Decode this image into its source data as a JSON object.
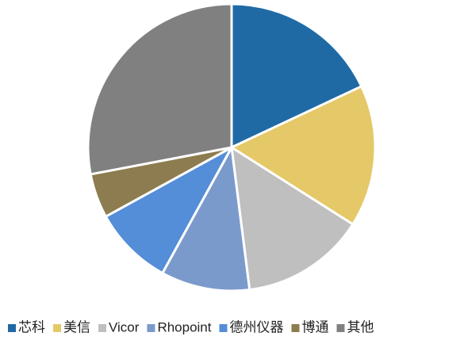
{
  "chart_data": {
    "type": "pie",
    "categories": [
      "芯科",
      "美信",
      "Vicor",
      "Rhopoint",
      "德州仪器",
      "博通",
      "其他"
    ],
    "values": [
      18,
      16,
      14,
      10,
      9,
      5,
      28
    ],
    "colors": [
      "#1f6aa5",
      "#e5c867",
      "#bfbfbf",
      "#7b9acc",
      "#548dd8",
      "#8d7c4f",
      "#808080"
    ],
    "legend": "bottom"
  }
}
